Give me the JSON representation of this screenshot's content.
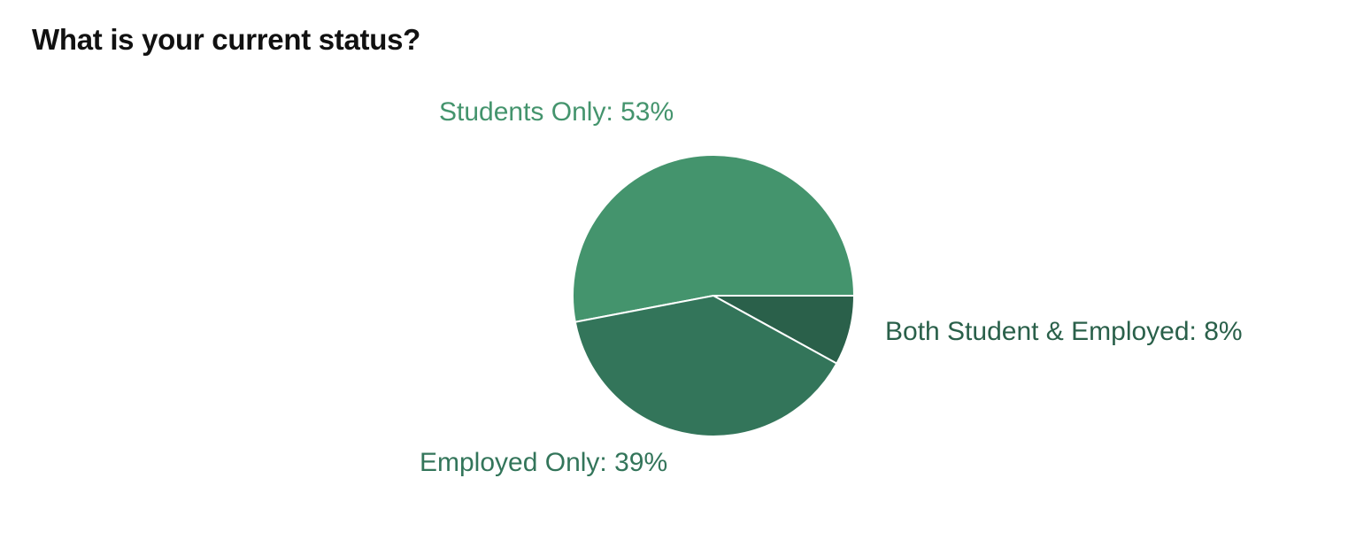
{
  "page": {
    "title": "What is your current status?"
  },
  "chart_data": {
    "type": "pie",
    "title": "What is your current status?",
    "slices": [
      {
        "label": "Students Only",
        "value": 53,
        "display": "Students Only: 53%",
        "color": "#44946d"
      },
      {
        "label": "Both Student & Employed",
        "value": 8,
        "display": "Both Student & Employed: 8%",
        "color": "#2a604a"
      },
      {
        "label": "Employed Only",
        "value": 39,
        "display": "Employed Only: 39%",
        "color": "#33755a"
      }
    ],
    "unit": "%"
  }
}
